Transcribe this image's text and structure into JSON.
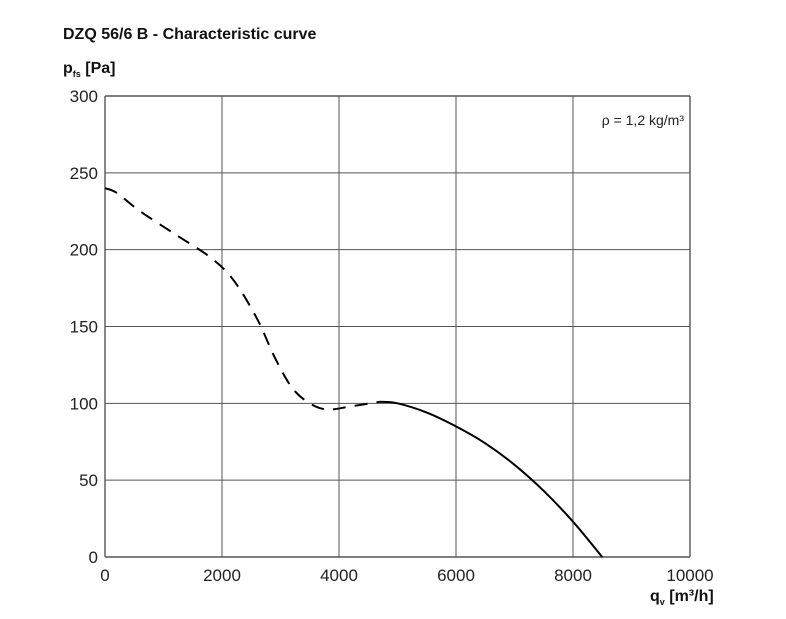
{
  "chart_data": {
    "type": "line",
    "title": "DZQ 56/6 B - Characteristic curve",
    "ylabel": {
      "symbol": "p",
      "sub": "fs",
      "unit": "[Pa]"
    },
    "xlabel": {
      "symbol": "q",
      "sub": "v",
      "unit": "[m³/h]"
    },
    "annotation": "ρ = 1,2 kg/m³",
    "xlim": [
      0,
      10000
    ],
    "ylim": [
      0,
      300
    ],
    "x_ticks": [
      0,
      2000,
      4000,
      6000,
      8000,
      10000
    ],
    "y_ticks": [
      0,
      50,
      100,
      150,
      200,
      250,
      300
    ],
    "grid": true,
    "series": [
      {
        "style": "dashed",
        "x": [
          0,
          200,
          600,
          1200,
          1800,
          2200,
          2600,
          2900,
          3200,
          3500,
          3800,
          4200,
          4700
        ],
        "y": [
          240,
          237,
          225,
          210,
          195,
          180,
          155,
          130,
          110,
          100,
          96,
          98,
          101
        ]
      },
      {
        "style": "solid",
        "x": [
          4700,
          5000,
          5500,
          6000,
          6500,
          7000,
          7500,
          8000,
          8500
        ],
        "y": [
          101,
          100,
          94,
          85,
          74,
          60,
          43,
          23,
          0
        ]
      }
    ]
  }
}
